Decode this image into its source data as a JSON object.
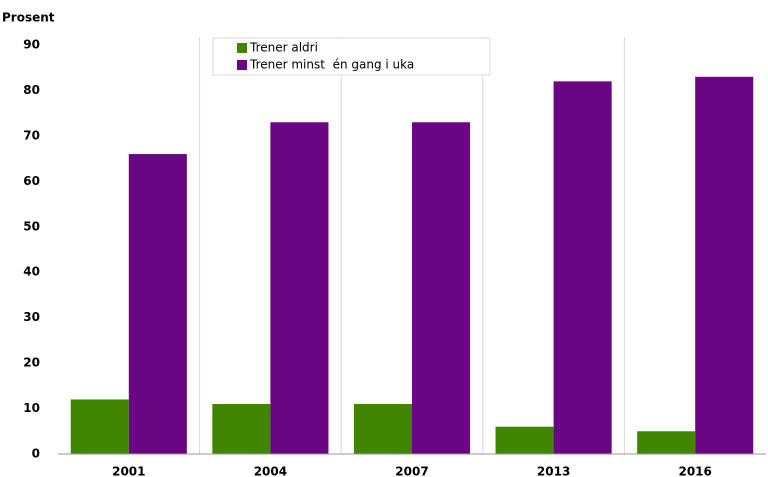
{
  "chart_data": {
    "type": "bar",
    "y_axis_label": "Prosent",
    "categories": [
      "2001",
      "2004",
      "2007",
      "2013",
      "2016"
    ],
    "series": [
      {
        "name": "Trener aldri",
        "color": "#3f8500",
        "values": [
          12,
          11,
          11,
          6,
          5
        ]
      },
      {
        "name": "Trener minst  én gang i uka",
        "color": "#6a0584",
        "values": [
          66,
          73,
          73,
          82,
          83
        ]
      }
    ],
    "ylim": [
      0,
      90
    ],
    "yticks": [
      0,
      10,
      20,
      30,
      40,
      50,
      60,
      70,
      80,
      90
    ],
    "legend": "top"
  }
}
